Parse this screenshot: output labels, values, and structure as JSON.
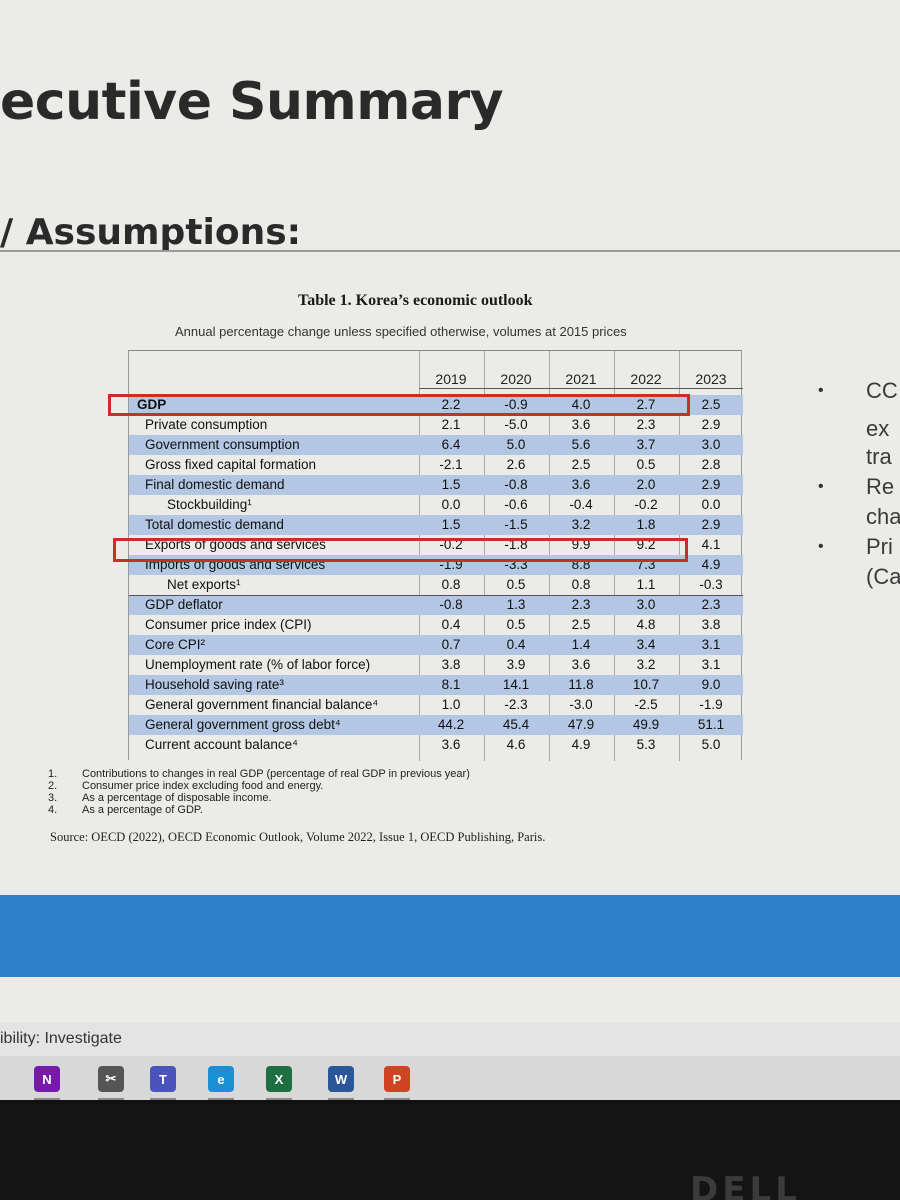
{
  "slide": {
    "title": "ecutive Summary",
    "subtitle": "Assumptions:"
  },
  "table": {
    "title": "Table 1. Korea’s economic outlook",
    "note": "Annual percentage change unless specified otherwise, volumes at 2015 prices",
    "years": [
      "2019",
      "2020",
      "2021",
      "2022",
      "2023"
    ],
    "rows": [
      {
        "label": "GDP",
        "values": [
          "2.2",
          "-0.9",
          "4.0",
          "2.7",
          "2.5"
        ]
      },
      {
        "label": "Private consumption",
        "values": [
          "2.1",
          "-5.0",
          "3.6",
          "2.3",
          "2.9"
        ]
      },
      {
        "label": "Government consumption",
        "values": [
          "6.4",
          "5.0",
          "5.6",
          "3.7",
          "3.0"
        ]
      },
      {
        "label": "Gross fixed capital formation",
        "values": [
          "-2.1",
          "2.6",
          "2.5",
          "0.5",
          "2.8"
        ]
      },
      {
        "label": "Final domestic demand",
        "values": [
          "1.5",
          "-0.8",
          "3.6",
          "2.0",
          "2.9"
        ]
      },
      {
        "label": "Stockbuilding¹",
        "values": [
          "0.0",
          "-0.6",
          "-0.4",
          "-0.2",
          "0.0"
        ]
      },
      {
        "label": "Total domestic demand",
        "values": [
          "1.5",
          "-1.5",
          "3.2",
          "1.8",
          "2.9"
        ]
      },
      {
        "label": "Exports of goods and services",
        "values": [
          "-0.2",
          "-1.8",
          "9.9",
          "9.2",
          "4.1"
        ]
      },
      {
        "label": "Imports of goods and services",
        "values": [
          "-1.9",
          "-3.3",
          "8.8",
          "7.3",
          "4.9"
        ]
      },
      {
        "label": "Net exports¹",
        "values": [
          "0.8",
          "0.5",
          "0.8",
          "1.1",
          "-0.3"
        ]
      },
      {
        "label": "GDP deflator",
        "values": [
          "-0.8",
          "1.3",
          "2.3",
          "3.0",
          "2.3"
        ]
      },
      {
        "label": "Consumer price index (CPI)",
        "values": [
          "0.4",
          "0.5",
          "2.5",
          "4.8",
          "3.8"
        ]
      },
      {
        "label": "Core CPI²",
        "values": [
          "0.7",
          "0.4",
          "1.4",
          "3.4",
          "3.1"
        ]
      },
      {
        "label": "Unemployment rate (% of labor force)",
        "values": [
          "3.8",
          "3.9",
          "3.6",
          "3.2",
          "3.1"
        ]
      },
      {
        "label": "Household saving rate³",
        "values": [
          "8.1",
          "14.1",
          "11.8",
          "10.7",
          "9.0"
        ]
      },
      {
        "label": "General government financial balance⁴",
        "values": [
          "1.0",
          "-2.3",
          "-3.0",
          "-2.5",
          "-1.9"
        ]
      },
      {
        "label": "General government gross debt⁴",
        "values": [
          "44.2",
          "45.4",
          "47.9",
          "49.9",
          "51.1"
        ]
      },
      {
        "label": "Current account balance⁴",
        "values": [
          "3.6",
          "4.6",
          "4.9",
          "5.3",
          "5.0"
        ]
      }
    ],
    "footnotes": [
      {
        "num": "1.",
        "text": "Contributions to changes in real GDP (percentage of real GDP in previous year)"
      },
      {
        "num": "2.",
        "text": "Consumer price index excluding food and energy."
      },
      {
        "num": "3.",
        "text": "As a percentage of disposable income."
      },
      {
        "num": "4.",
        "text": "As a percentage of GDP."
      }
    ],
    "source": "Source: OECD (2022), OECD Economic Outlook, Volume 2022, Issue 1, OECD Publishing, Paris."
  },
  "bullets": [
    "CC",
    "ex",
    "tra",
    "Re",
    "cha",
    "Pri",
    "(Ca"
  ],
  "status": {
    "accessibility": "ibility: Investigate"
  },
  "taskbar": [
    {
      "name": "onenote-icon",
      "glyph": "N",
      "color": "#7719aa"
    },
    {
      "name": "snipping-icon",
      "glyph": "✂",
      "color": "#555555"
    },
    {
      "name": "teams-icon",
      "glyph": "T",
      "color": "#4b53bc"
    },
    {
      "name": "edge-icon",
      "glyph": "e",
      "color": "#1a8fd6"
    },
    {
      "name": "excel-icon",
      "glyph": "X",
      "color": "#1d6f42"
    },
    {
      "name": "word-icon",
      "glyph": "W",
      "color": "#2b579a"
    },
    {
      "name": "powerpoint-icon",
      "glyph": "P",
      "color": "#d04423"
    }
  ],
  "colors": {
    "highlight": "#d22a2a",
    "band": "#b3c6e3",
    "bluebar": "#2d7fc7"
  }
}
